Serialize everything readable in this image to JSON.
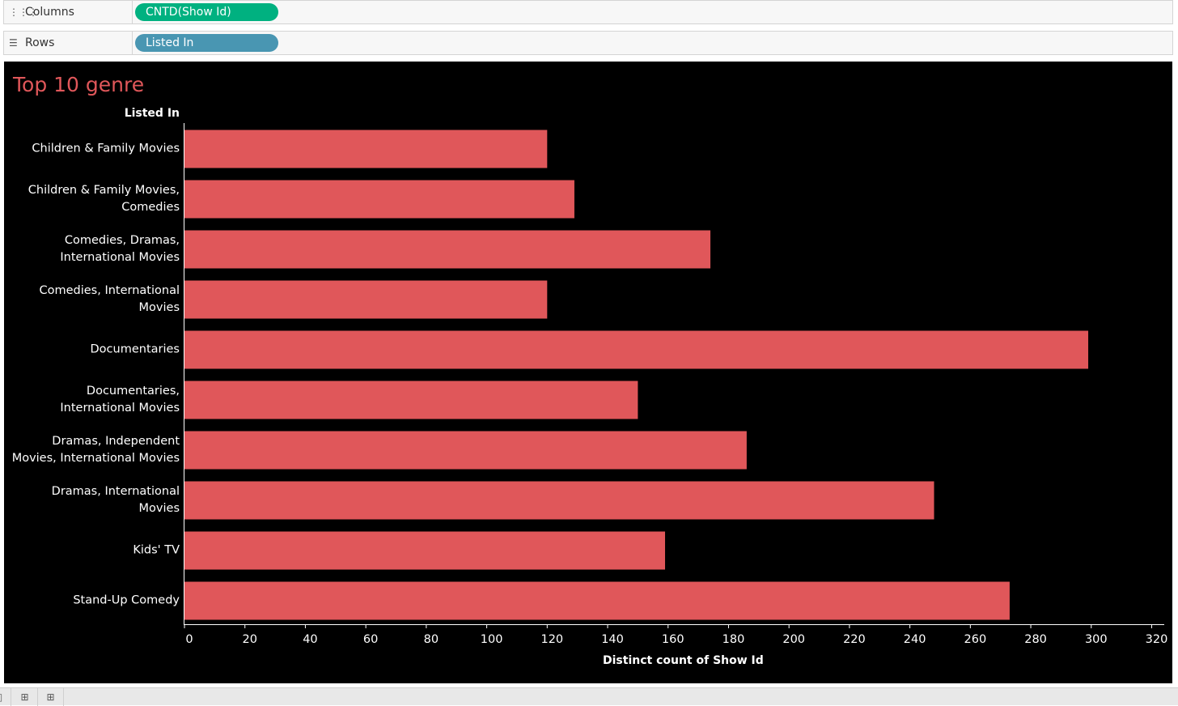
{
  "shelves": {
    "columns": {
      "label": "Columns",
      "pill": "CNTD(Show Id)",
      "pill_color": "#00b180"
    },
    "rows": {
      "label": "Rows",
      "pill": "Listed In",
      "pill_color": "#4996b2"
    }
  },
  "colors": {
    "bar": "#e0575a",
    "background": "#000000",
    "title": "#e0575a"
  },
  "chart_data": {
    "type": "bar",
    "orientation": "horizontal",
    "title": "Top 10 genre",
    "row_header": "Listed In",
    "xlabel": "Distinct count of Show Id",
    "ylabel": "Listed In",
    "xlim": [
      0,
      320
    ],
    "xticks": [
      0,
      20,
      40,
      60,
      80,
      100,
      120,
      140,
      160,
      180,
      200,
      220,
      240,
      260,
      280,
      300,
      320
    ],
    "categories": [
      [
        "Children & Family Movies"
      ],
      [
        "Children & Family Movies,",
        "Comedies"
      ],
      [
        "Comedies, Dramas,",
        "International Movies"
      ],
      [
        "Comedies, International",
        "Movies"
      ],
      [
        "Documentaries"
      ],
      [
        "Documentaries,",
        "International Movies"
      ],
      [
        "Dramas, Independent",
        "Movies, International Movies"
      ],
      [
        "Dramas, International",
        "Movies"
      ],
      [
        "Kids' TV"
      ],
      [
        "Stand-Up Comedy"
      ]
    ],
    "values": [
      120,
      129,
      174,
      120,
      299,
      150,
      186,
      248,
      159,
      273
    ],
    "grid": false
  }
}
